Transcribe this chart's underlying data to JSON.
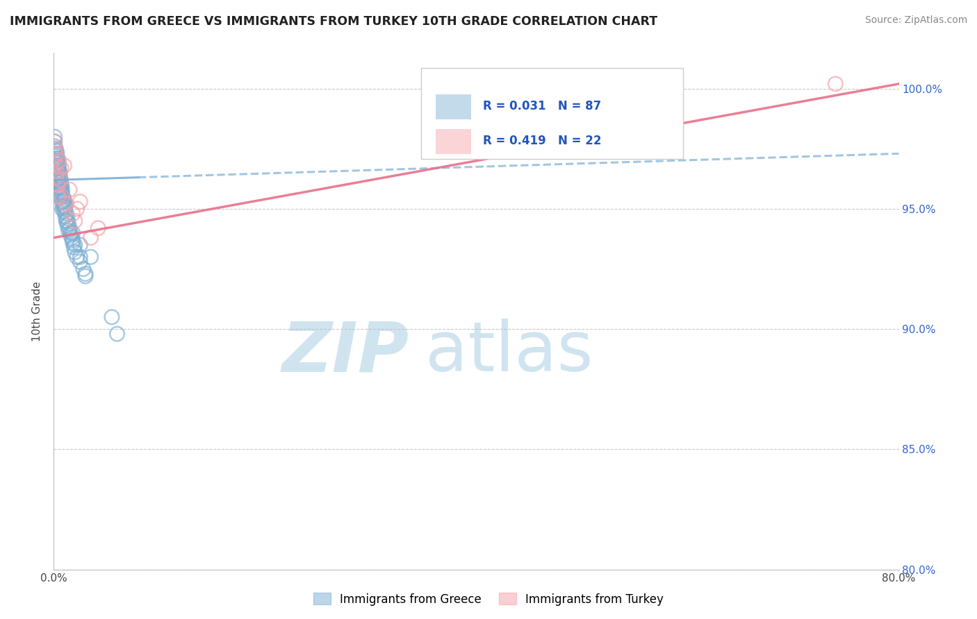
{
  "title": "IMMIGRANTS FROM GREECE VS IMMIGRANTS FROM TURKEY 10TH GRADE CORRELATION CHART",
  "source": "Source: ZipAtlas.com",
  "ylabel": "10th Grade",
  "xlim": [
    0.0,
    80.0
  ],
  "ylim": [
    80.0,
    101.5
  ],
  "x_ticks": [
    0.0,
    10.0,
    20.0,
    30.0,
    40.0,
    50.0,
    60.0,
    70.0,
    80.0
  ],
  "y_ticks": [
    80.0,
    85.0,
    90.0,
    95.0,
    100.0
  ],
  "y_tick_labels": [
    "80.0%",
    "85.0%",
    "90.0%",
    "95.0%",
    "100.0%"
  ],
  "greece_R": 0.031,
  "greece_N": 87,
  "turkey_R": 0.419,
  "turkey_N": 22,
  "greece_color": "#7BAFD4",
  "turkey_color": "#F4A0A8",
  "greece_line_color": "#7BAFD4",
  "turkey_line_color": "#E8708A",
  "watermark_zip": "ZIP",
  "watermark_atlas": "atlas",
  "watermark_color": "#d0e4f0",
  "legend_label_greece": "Immigrants from Greece",
  "legend_label_turkey": "Immigrants from Turkey",
  "greece_x": [
    0.05,
    0.08,
    0.1,
    0.12,
    0.15,
    0.18,
    0.2,
    0.22,
    0.25,
    0.28,
    0.3,
    0.32,
    0.35,
    0.38,
    0.4,
    0.42,
    0.45,
    0.48,
    0.5,
    0.52,
    0.55,
    0.58,
    0.6,
    0.62,
    0.65,
    0.68,
    0.7,
    0.72,
    0.75,
    0.78,
    0.8,
    0.85,
    0.9,
    0.95,
    1.0,
    1.05,
    1.1,
    1.2,
    1.3,
    1.4,
    1.5,
    1.6,
    1.7,
    1.8,
    1.9,
    2.0,
    2.2,
    2.5,
    2.8,
    3.0,
    0.1,
    0.15,
    0.2,
    0.25,
    0.3,
    0.35,
    0.4,
    0.45,
    0.5,
    0.55,
    0.6,
    0.65,
    0.7,
    0.75,
    0.8,
    0.85,
    0.9,
    0.95,
    1.0,
    1.05,
    1.1,
    1.2,
    1.3,
    1.4,
    1.6,
    1.8,
    2.0,
    2.5,
    3.0,
    5.5,
    6.0,
    0.5,
    0.8,
    1.2,
    1.8,
    2.5,
    3.5
  ],
  "greece_y": [
    97.5,
    98.0,
    97.8,
    97.6,
    97.3,
    97.5,
    97.2,
    97.0,
    97.4,
    97.1,
    97.3,
    97.0,
    96.8,
    97.1,
    96.9,
    96.7,
    96.5,
    96.8,
    96.6,
    96.4,
    96.2,
    96.5,
    96.3,
    96.1,
    95.9,
    96.2,
    96.0,
    95.8,
    95.6,
    95.9,
    95.7,
    95.5,
    95.3,
    95.1,
    95.4,
    95.2,
    95.0,
    94.8,
    94.6,
    94.4,
    94.2,
    94.0,
    93.8,
    93.6,
    93.4,
    93.2,
    93.0,
    92.8,
    92.5,
    92.2,
    96.8,
    97.0,
    96.5,
    96.7,
    96.3,
    96.5,
    96.1,
    96.3,
    95.9,
    96.1,
    95.7,
    95.9,
    95.5,
    95.7,
    95.3,
    95.5,
    95.1,
    95.3,
    94.9,
    95.1,
    94.7,
    94.5,
    94.3,
    94.1,
    93.9,
    93.7,
    93.5,
    93.0,
    92.3,
    90.5,
    89.8,
    95.5,
    95.0,
    94.5,
    94.0,
    93.5,
    93.0
  ],
  "turkey_x": [
    0.08,
    0.15,
    0.2,
    0.3,
    0.4,
    0.5,
    0.65,
    0.8,
    1.0,
    1.2,
    1.5,
    2.0,
    2.5,
    3.5,
    4.2,
    0.12,
    0.25,
    0.45,
    0.7,
    1.8,
    2.2,
    74.0
  ],
  "turkey_y": [
    97.8,
    96.8,
    97.3,
    96.5,
    96.0,
    97.0,
    96.2,
    95.5,
    96.8,
    95.2,
    95.8,
    94.5,
    95.3,
    93.8,
    94.2,
    97.5,
    96.3,
    95.5,
    96.7,
    94.8,
    95.0,
    100.2
  ],
  "greece_trend_x0": 0.0,
  "greece_trend_y0": 96.2,
  "greece_trend_x1": 80.0,
  "greece_trend_y1": 97.3,
  "greece_solid_x1": 8.0,
  "turkey_trend_x0": 0.0,
  "turkey_trend_y0": 93.8,
  "turkey_trend_x1": 80.0,
  "turkey_trend_y1": 100.2
}
